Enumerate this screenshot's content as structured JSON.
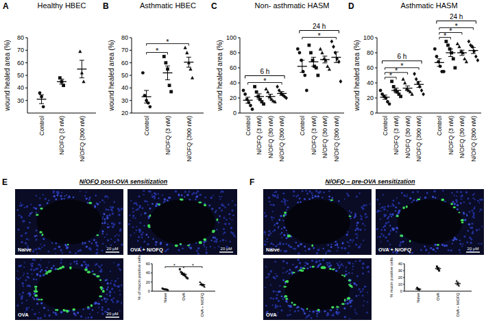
{
  "chart_data": [
    {
      "type": "dot",
      "panel": "A",
      "title": "Healthy HBEC",
      "ylabel": "wound healed area (%)",
      "categories": [
        "Control",
        "N/OFQ (3 nM)",
        "N/OFQ (300 nM)"
      ],
      "points": [
        [
          36,
          33,
          25
        ],
        [
          48,
          45,
          42
        ],
        [
          69,
          52,
          45
        ]
      ],
      "values": [
        31,
        45,
        55
      ],
      "errors": [
        3.5,
        2,
        7
      ],
      "ylim": [
        20,
        80
      ],
      "yticks": [
        30,
        40,
        50,
        60,
        70,
        80
      ],
      "annotations": []
    },
    {
      "type": "dot",
      "panel": "B",
      "title": "Asthmatic HBEC",
      "ylabel": "wound healed area (%)",
      "categories": [
        "Control",
        "N/OFQ (3 nM)",
        "N/OFQ (300 nM)"
      ],
      "points": [
        [
          52,
          34,
          30,
          28,
          25
        ],
        [
          65,
          60,
          55,
          42,
          37
        ],
        [
          72,
          68,
          60,
          55,
          48
        ]
      ],
      "values": [
        33,
        52,
        60.5
      ],
      "errors": [
        5,
        5.5,
        4
      ],
      "ylim": [
        20,
        80
      ],
      "yticks": [
        20,
        30,
        40,
        50,
        60,
        70,
        80
      ],
      "annotations": [
        {
          "text": "*",
          "between": [
            0,
            1
          ]
        },
        {
          "text": "*",
          "between": [
            0,
            2
          ]
        }
      ]
    },
    {
      "type": "dot",
      "panel": "C",
      "title": "Non- asthmatic HASM",
      "ylabel": "wound healed area (%)",
      "categories": [
        "Control",
        "N/OFQ (3 nM)",
        "N/OFQ (30 nM)",
        "N/OFQ (300 nM)",
        "Control",
        "N/OFQ (3 nM)",
        "N/OFQ (30 nM)",
        "N/OFQ (300 nM)"
      ],
      "points": [
        [
          30,
          25,
          18,
          14,
          10,
          5
        ],
        [
          35,
          28,
          22,
          18,
          15,
          12
        ],
        [
          32,
          28,
          22,
          18,
          16,
          15
        ],
        [
          35,
          30,
          26,
          24,
          22,
          20
        ],
        [
          85,
          80,
          70,
          55,
          50,
          30
        ],
        [
          90,
          80,
          70,
          62,
          60,
          50
        ],
        [
          85,
          80,
          72,
          70,
          62,
          58
        ],
        [
          95,
          88,
          80,
          72,
          68,
          42
        ]
      ],
      "values": [
        17,
        22,
        22,
        26,
        62,
        68,
        71,
        74
      ],
      "errors": [
        4,
        3.5,
        3,
        2.5,
        8,
        6,
        4.5,
        7
      ],
      "ylim": [
        0,
        100
      ],
      "yticks": [
        0,
        20,
        40,
        60,
        80,
        100
      ],
      "groups": [
        {
          "label": "6 h",
          "start": 0,
          "end": 3
        },
        {
          "label": "24 h",
          "start": 4,
          "end": 7
        }
      ],
      "annotations": [
        {
          "text": "*",
          "between": [
            0,
            3
          ]
        },
        {
          "text": "*",
          "between": [
            4,
            7
          ]
        }
      ]
    },
    {
      "type": "dot",
      "panel": "D",
      "title": "Asthmatic HASM",
      "ylabel": "wound healed area (%)",
      "categories": [
        "Control",
        "N/OFQ (3 nM)",
        "N/OFQ (30 nM)",
        "N/OFQ (300 nM)",
        "Control",
        "N/OFQ (3 nM)",
        "N/OFQ (30 nM)",
        "N/OFQ (300 nM)"
      ],
      "points": [
        [
          30,
          25,
          22,
          20,
          15,
          12
        ],
        [
          42,
          35,
          30,
          28,
          25,
          22
        ],
        [
          45,
          40,
          32,
          30,
          28,
          25
        ],
        [
          52,
          45,
          40,
          35,
          30,
          25
        ],
        [
          85,
          75,
          68,
          62,
          55,
          55
        ],
        [
          95,
          90,
          85,
          80,
          72,
          60
        ],
        [
          92,
          88,
          82,
          80,
          72,
          68
        ],
        [
          95,
          90,
          88,
          82,
          75,
          70
        ]
      ],
      "values": [
        21,
        30,
        33,
        38,
        67,
        80,
        80,
        83
      ],
      "errors": [
        2.8,
        3,
        3,
        4,
        5,
        5,
        3.5,
        4
      ],
      "ylim": [
        0,
        100
      ],
      "yticks": [
        0,
        20,
        40,
        60,
        80,
        100
      ],
      "groups": [
        {
          "label": "6 h",
          "start": 0,
          "end": 3
        },
        {
          "label": "24 h",
          "start": 4,
          "end": 7
        }
      ],
      "annotations": [
        {
          "text": "*",
          "between": [
            0,
            1
          ]
        },
        {
          "text": "*",
          "between": [
            0,
            2
          ]
        },
        {
          "text": "*",
          "between": [
            0,
            3
          ]
        },
        {
          "text": "*",
          "between": [
            4,
            5
          ]
        },
        {
          "text": "*",
          "between": [
            4,
            6
          ]
        },
        {
          "text": "*",
          "between": [
            4,
            7
          ]
        }
      ]
    },
    {
      "type": "dot",
      "panel": "E",
      "title": "N/OFQ post-OVA sensitization",
      "ylabel": "% of mucin positive cells",
      "images": [
        {
          "label": "Naive",
          "scale": "20 μM"
        },
        {
          "label": "OVA + N/OFQ",
          "scale": "20 μM"
        },
        {
          "label": "OVA",
          "scale": "20 μM"
        }
      ],
      "categories": [
        "Naive",
        "OVA",
        "OVA + N/OFQ"
      ],
      "points": [
        [
          6,
          5,
          4,
          4,
          3,
          2
        ],
        [
          48,
          42,
          40,
          37,
          35,
          33,
          30,
          28
        ],
        [
          20,
          17,
          14,
          12,
          10
        ]
      ],
      "values": [
        4,
        37,
        14
      ],
      "errors": [
        0.6,
        2.3,
        1.8
      ],
      "ylim": [
        0,
        60
      ],
      "yticks": [
        0,
        20,
        40,
        60
      ],
      "annotations": [
        {
          "text": "*",
          "between": [
            0,
            1
          ]
        },
        {
          "text": "*",
          "between": [
            1,
            2
          ]
        }
      ]
    },
    {
      "type": "dot",
      "panel": "F",
      "title": "N/OFQ – pre-OVA sensitization",
      "ylabel": "% mucin positive cells",
      "images": [
        {
          "label": "Naive"
        },
        {
          "label": "OVA + N/OFQ",
          "scale": "20 μM"
        },
        {
          "label": "OVA"
        }
      ],
      "categories": [
        "Naive",
        "OVA",
        "OVA + N/OFQ"
      ],
      "points": [
        [
          5,
          3,
          2
        ],
        [
          36,
          33,
          30
        ],
        [
          15,
          11,
          8
        ]
      ],
      "values": [
        3,
        33,
        11
      ],
      "errors": [
        1,
        1.7,
        2
      ],
      "ylim": [
        0,
        40
      ],
      "yticks": [
        0,
        10,
        20,
        30,
        40
      ],
      "annotations": []
    }
  ]
}
